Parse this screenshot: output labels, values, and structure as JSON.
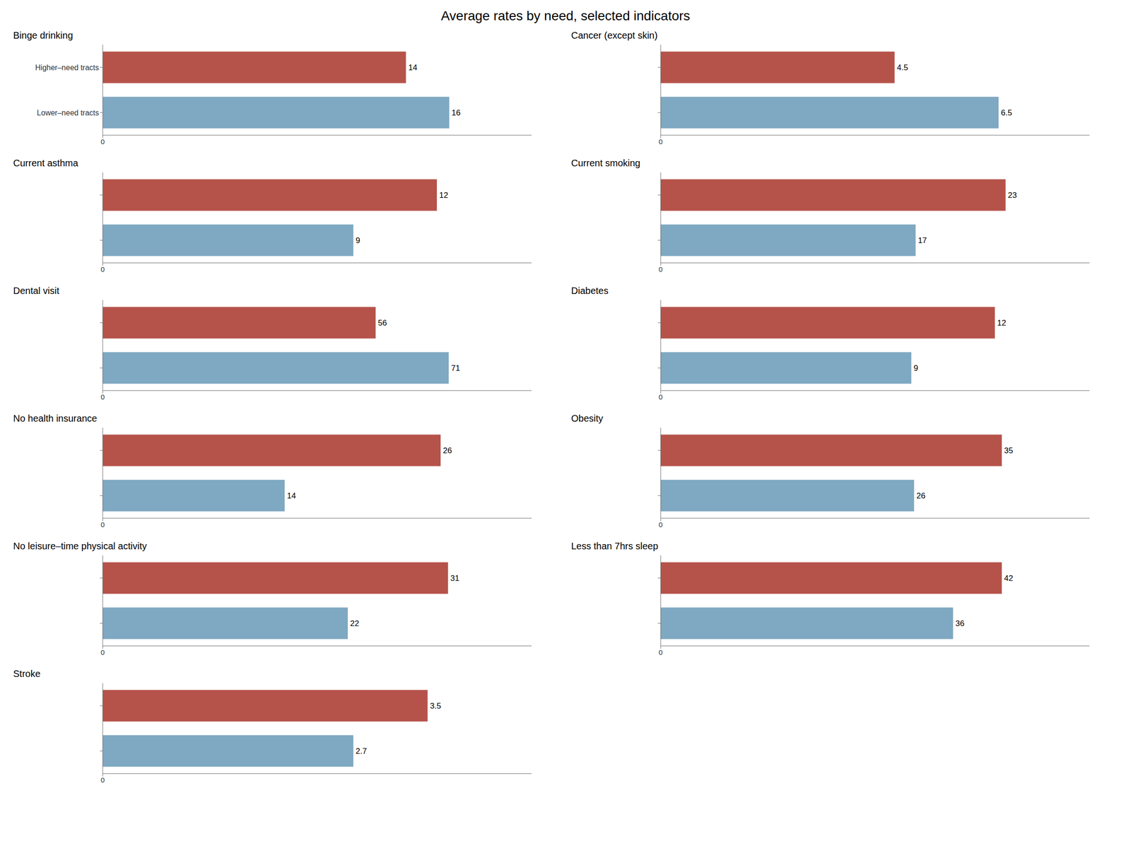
{
  "title": "Average rates by need, selected indicators",
  "chart_data": [
    {
      "type": "bar",
      "orientation": "horizontal",
      "title": "Binge drinking",
      "categories": [
        "Higher–need tracts",
        "Lower–need tracts"
      ],
      "values": [
        14,
        16
      ],
      "colors": [
        "#b5534a",
        "#7fa8c2"
      ],
      "xlim": [
        0,
        19.8
      ],
      "xticks": [
        0
      ],
      "data_labels": true,
      "grid": false
    },
    {
      "type": "bar",
      "orientation": "horizontal",
      "title": "Cancer (except skin)",
      "categories": [
        null,
        null
      ],
      "values": [
        4.5,
        6.5
      ],
      "colors": [
        "#b5534a",
        "#7fa8c2"
      ],
      "xlim": [
        0,
        8.25
      ],
      "xticks": [
        0
      ],
      "data_labels": true,
      "grid": false
    },
    {
      "type": "bar",
      "orientation": "horizontal",
      "title": "Current asthma",
      "categories": [
        null,
        null
      ],
      "values": [
        12,
        9
      ],
      "colors": [
        "#b5534a",
        "#7fa8c2"
      ],
      "xlim": [
        0,
        15.4
      ],
      "xticks": [
        0
      ],
      "data_labels": true,
      "grid": false
    },
    {
      "type": "bar",
      "orientation": "horizontal",
      "title": "Current smoking",
      "categories": [
        null,
        null
      ],
      "values": [
        23,
        17
      ],
      "colors": [
        "#b5534a",
        "#7fa8c2"
      ],
      "xlim": [
        0,
        28.6
      ],
      "xticks": [
        0
      ],
      "data_labels": true,
      "grid": false
    },
    {
      "type": "bar",
      "orientation": "horizontal",
      "title": "Dental visit",
      "categories": [
        null,
        null
      ],
      "values": [
        56,
        71
      ],
      "colors": [
        "#b5534a",
        "#7fa8c2"
      ],
      "xlim": [
        0,
        88
      ],
      "xticks": [
        0
      ],
      "data_labels": true,
      "grid": false
    },
    {
      "type": "bar",
      "orientation": "horizontal",
      "title": "Diabetes",
      "categories": [
        null,
        null
      ],
      "values": [
        12,
        9
      ],
      "colors": [
        "#b5534a",
        "#7fa8c2"
      ],
      "xlim": [
        0,
        15.4
      ],
      "xticks": [
        0
      ],
      "data_labels": true,
      "grid": false
    },
    {
      "type": "bar",
      "orientation": "horizontal",
      "title": "No health insurance",
      "categories": [
        null,
        null
      ],
      "values": [
        26,
        14
      ],
      "colors": [
        "#b5534a",
        "#7fa8c2"
      ],
      "xlim": [
        0,
        33
      ],
      "xticks": [
        0
      ],
      "data_labels": true,
      "grid": false
    },
    {
      "type": "bar",
      "orientation": "horizontal",
      "title": "Obesity",
      "categories": [
        null,
        null
      ],
      "values": [
        35,
        26
      ],
      "colors": [
        "#b5534a",
        "#7fa8c2"
      ],
      "xlim": [
        0,
        44
      ],
      "xticks": [
        0
      ],
      "data_labels": true,
      "grid": false
    },
    {
      "type": "bar",
      "orientation": "horizontal",
      "title": "No leisure–time physical activity",
      "categories": [
        null,
        null
      ],
      "values": [
        31,
        22
      ],
      "colors": [
        "#b5534a",
        "#7fa8c2"
      ],
      "xlim": [
        0,
        38.5
      ],
      "xticks": [
        0
      ],
      "data_labels": true,
      "grid": false
    },
    {
      "type": "bar",
      "orientation": "horizontal",
      "title": "Less than 7hrs sleep",
      "categories": [
        null,
        null
      ],
      "values": [
        42,
        36
      ],
      "colors": [
        "#b5534a",
        "#7fa8c2"
      ],
      "xlim": [
        0,
        52.8
      ],
      "xticks": [
        0
      ],
      "data_labels": true,
      "grid": false
    },
    {
      "type": "bar",
      "orientation": "horizontal",
      "title": "Stroke",
      "categories": [
        null,
        null
      ],
      "values": [
        3.5,
        2.7
      ],
      "colors": [
        "#b5534a",
        "#7fa8c2"
      ],
      "xlim": [
        0,
        4.62
      ],
      "xticks": [
        0
      ],
      "data_labels": true,
      "grid": false
    }
  ]
}
